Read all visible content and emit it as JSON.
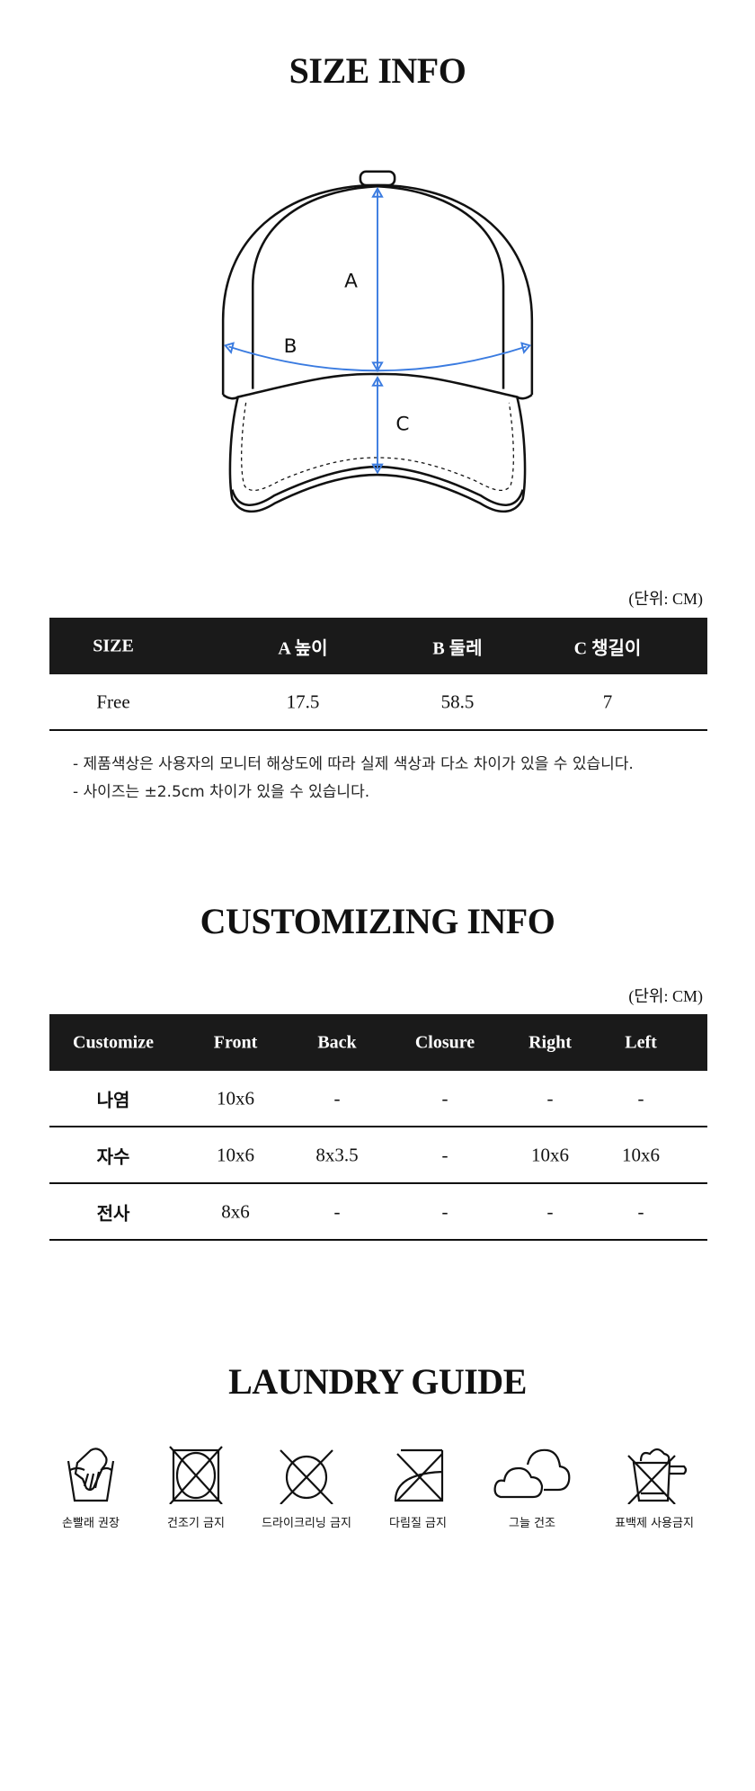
{
  "size_info": {
    "title": "SIZE INFO",
    "diagram_labels": {
      "a": "A",
      "b": "B",
      "c": "C"
    },
    "measure_color": "#3a7be0",
    "unit": "(단위: CM)",
    "headers": [
      "SIZE",
      "A 높이",
      "B 둘레",
      "C 챙길이"
    ],
    "rows": [
      [
        "Free",
        "17.5",
        "58.5",
        "7"
      ]
    ],
    "notes": [
      "- 제품색상은 사용자의 모니터 해상도에 따라 실제 색상과 다소 차이가 있을 수 있습니다.",
      "- 사이즈는 ±2.5cm 차이가 있을 수 있습니다."
    ]
  },
  "customizing_info": {
    "title": "CUSTOMIZING INFO",
    "unit": "(단위: CM)",
    "headers": [
      "Customize",
      "Front",
      "Back",
      "Closure",
      "Right",
      "Left"
    ],
    "rows": [
      [
        "나염",
        "10x6",
        "-",
        "-",
        "-",
        "-"
      ],
      [
        "자수",
        "10x6",
        "8x3.5",
        "-",
        "10x6",
        "10x6"
      ],
      [
        "전사",
        "8x6",
        "-",
        "-",
        "-",
        "-"
      ]
    ]
  },
  "laundry_guide": {
    "title": "LAUNDRY GUIDE",
    "items": [
      {
        "icon": "hand-wash-icon",
        "label": "손빨래 권장"
      },
      {
        "icon": "no-tumble-dry-icon",
        "label": "건조기 금지"
      },
      {
        "icon": "no-dry-clean-icon",
        "label": "드라이크리닝 금지"
      },
      {
        "icon": "no-iron-icon",
        "label": "다림질 금지"
      },
      {
        "icon": "shade-dry-icon",
        "label": "그늘 건조"
      },
      {
        "icon": "no-bleach-icon",
        "label": "표백제 사용금지"
      }
    ]
  }
}
